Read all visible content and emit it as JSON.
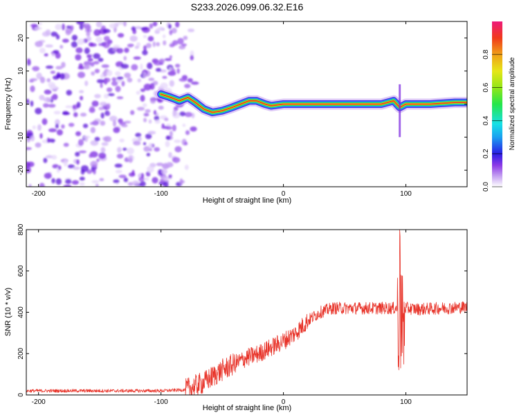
{
  "title": "S233.2026.099.06.32.E16",
  "colors": {
    "snr_line": "#e8342a",
    "axis": "#000000"
  },
  "chart_data": [
    {
      "type": "heatmap",
      "xlabel": "Height of straight line (km)",
      "ylabel": "Frequency (Hz)",
      "xlim": [
        -210,
        150
      ],
      "ylim": [
        -25,
        25
      ],
      "x_ticks": [
        "-200",
        "-100",
        "0",
        "100"
      ],
      "y_ticks": [
        "-20",
        "-10",
        "0",
        "10",
        "20"
      ],
      "grid": false,
      "colorbar": {
        "label": "Normalized spectral amplitude",
        "range": [
          0,
          1
        ],
        "ticks": [
          "0.0",
          "0.2",
          "0.4",
          "0.6",
          "0.8"
        ],
        "colormap": "rainbow"
      },
      "ridge": {
        "description_points_x": [
          -100,
          -92,
          -85,
          -78,
          -72,
          -65,
          -58,
          -50,
          -42,
          -35,
          -28,
          -22,
          -15,
          -10,
          0,
          10,
          20,
          40,
          60,
          80,
          90,
          95,
          100,
          120,
          140,
          150
        ],
        "frequency_y": [
          3,
          2,
          1,
          2,
          0.5,
          -1.5,
          -2.5,
          -2,
          -1,
          0,
          1,
          1,
          0,
          -0.5,
          0,
          0,
          0,
          0,
          0,
          0,
          1,
          -1,
          0,
          0,
          0.5,
          0.5
        ]
      },
      "noise_region_x": [
        -210,
        -75
      ]
    },
    {
      "type": "line",
      "xlabel": "Height of straight line (km)",
      "ylabel": "SNR (10 * v/v)",
      "xlim": [
        -210,
        150
      ],
      "ylim": [
        0,
        800
      ],
      "x_ticks": [
        "-200",
        "-100",
        "0",
        "100"
      ],
      "y_ticks": [
        "0",
        "200",
        "400",
        "600",
        "800"
      ],
      "grid": false,
      "series": [
        {
          "envelope_x": [
            -210,
            -150,
            -100,
            -80,
            -65,
            -50,
            -40,
            -30,
            -20,
            -10,
            0,
            10,
            20,
            30,
            40,
            60,
            80,
            90,
            95,
            97,
            100,
            110,
            130,
            150
          ],
          "envelope_y": [
            20,
            20,
            20,
            25,
            60,
            120,
            150,
            180,
            200,
            230,
            260,
            300,
            360,
            400,
            420,
            420,
            420,
            420,
            420,
            420,
            420,
            415,
            420,
            425
          ]
        }
      ]
    }
  ]
}
